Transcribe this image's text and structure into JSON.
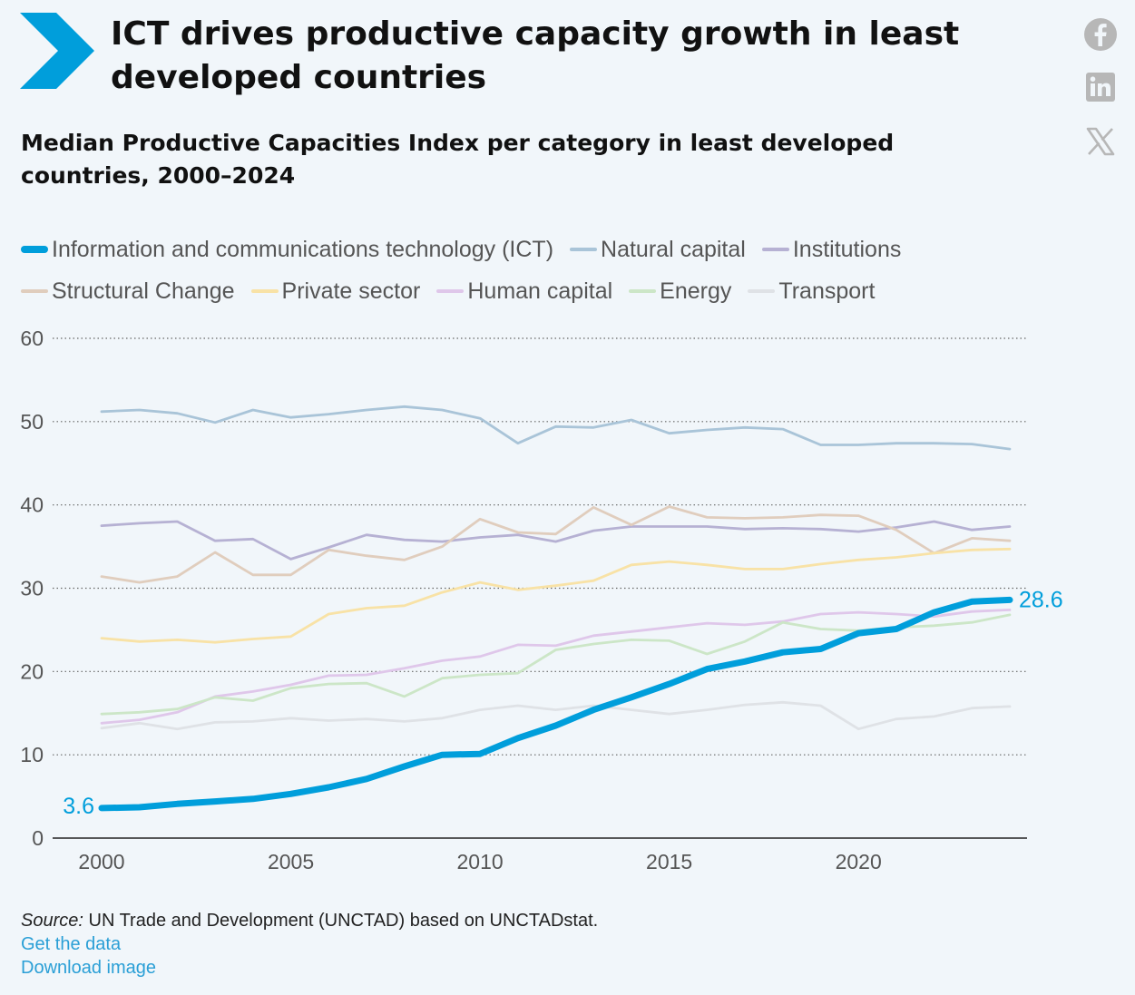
{
  "header": {
    "title": "ICT drives productive capacity growth in least developed countries",
    "subtitle": "Median Productive Capacities Index per category in least developed countries, 2000–2024"
  },
  "share": {
    "icons": [
      "facebook-icon",
      "linkedin-icon",
      "x-icon"
    ]
  },
  "footer": {
    "source_label": "Source:",
    "source_text": "UN Trade and Development (UNCTAD) based on UNCTADstat.",
    "get_data": "Get the data",
    "download_image": "Download image"
  },
  "colors": {
    "background": "#f1f6fa",
    "accent": "#009edb",
    "icons": "#b7b7b7"
  },
  "chart_data": {
    "type": "line",
    "x": [
      2000,
      2001,
      2002,
      2003,
      2004,
      2005,
      2006,
      2007,
      2008,
      2009,
      2010,
      2011,
      2012,
      2013,
      2014,
      2015,
      2016,
      2017,
      2018,
      2019,
      2020,
      2021,
      2022,
      2023,
      2024
    ],
    "xticks": [
      2000,
      2005,
      2010,
      2015,
      2020
    ],
    "yticks": [
      0,
      10,
      20,
      30,
      40,
      50,
      60
    ],
    "ylim": [
      0,
      60
    ],
    "xlim": [
      2000,
      2024
    ],
    "grid": "horizontal dotted",
    "legend_position": "top",
    "series": [
      {
        "name": "Information and communications technology (ICT)",
        "color": "#009edb",
        "emphasis": true,
        "values": [
          3.6,
          3.7,
          4.1,
          4.4,
          4.7,
          5.3,
          6.1,
          7.1,
          8.6,
          10.0,
          10.1,
          12.0,
          13.5,
          15.4,
          16.9,
          18.5,
          20.3,
          21.2,
          22.3,
          22.7,
          24.6,
          25.1,
          27.1,
          28.4,
          28.6
        ]
      },
      {
        "name": "Natural capital",
        "color": "#a9c4d8",
        "values": [
          51.2,
          51.4,
          51.0,
          49.9,
          51.4,
          50.5,
          50.9,
          51.4,
          51.8,
          51.4,
          50.4,
          47.4,
          49.4,
          49.3,
          50.2,
          48.6,
          49.0,
          49.3,
          49.1,
          47.2,
          47.2,
          47.4,
          47.4,
          47.3,
          46.7
        ]
      },
      {
        "name": "Institutions",
        "color": "#b6b1d3",
        "values": [
          37.5,
          37.8,
          38.0,
          35.7,
          35.9,
          33.5,
          34.9,
          36.4,
          35.8,
          35.6,
          36.1,
          36.4,
          35.6,
          36.9,
          37.4,
          37.4,
          37.4,
          37.1,
          37.2,
          37.1,
          36.8,
          37.3,
          38.0,
          37.0,
          37.4
        ]
      },
      {
        "name": "Structural Change",
        "color": "#e0cdbd",
        "values": [
          31.4,
          30.7,
          31.4,
          34.3,
          31.6,
          31.6,
          34.6,
          33.9,
          33.4,
          35.0,
          38.3,
          36.7,
          36.5,
          39.7,
          37.6,
          39.8,
          38.5,
          38.4,
          38.5,
          38.8,
          38.7,
          37.0,
          34.2,
          36.0,
          35.7
        ]
      },
      {
        "name": "Private sector",
        "color": "#f8e2a6",
        "values": [
          24.0,
          23.6,
          23.8,
          23.5,
          23.9,
          24.2,
          26.9,
          27.6,
          27.9,
          29.5,
          30.7,
          29.8,
          30.3,
          30.9,
          32.8,
          33.2,
          32.8,
          32.3,
          32.3,
          32.9,
          33.4,
          33.7,
          34.2,
          34.6,
          34.7
        ]
      },
      {
        "name": "Human capital",
        "color": "#dfc7ea",
        "values": [
          13.8,
          14.2,
          15.1,
          17.0,
          17.6,
          18.4,
          19.5,
          19.6,
          20.4,
          21.3,
          21.8,
          23.2,
          23.1,
          24.3,
          24.8,
          25.3,
          25.8,
          25.6,
          26.0,
          26.9,
          27.1,
          26.9,
          26.6,
          27.2,
          27.4
        ]
      },
      {
        "name": "Energy",
        "color": "#cce6c7",
        "values": [
          14.9,
          15.1,
          15.5,
          16.9,
          16.5,
          18.0,
          18.5,
          18.6,
          17.0,
          19.2,
          19.6,
          19.8,
          22.6,
          23.3,
          23.8,
          23.7,
          22.1,
          23.6,
          25.9,
          25.1,
          24.9,
          25.3,
          25.5,
          25.9,
          26.8
        ]
      },
      {
        "name": "Transport",
        "color": "#dfe2e6",
        "values": [
          13.2,
          13.8,
          13.1,
          13.9,
          14.0,
          14.4,
          14.1,
          14.3,
          14.0,
          14.4,
          15.4,
          15.9,
          15.4,
          15.9,
          15.4,
          14.9,
          15.4,
          16.0,
          16.3,
          15.9,
          13.1,
          14.3,
          14.6,
          15.6,
          15.8
        ]
      }
    ],
    "annotations": [
      {
        "series": "Information and communications technology (ICT)",
        "x": 2000,
        "text": "3.6"
      },
      {
        "series": "Information and communications technology (ICT)",
        "x": 2024,
        "text": "28.6"
      }
    ]
  }
}
